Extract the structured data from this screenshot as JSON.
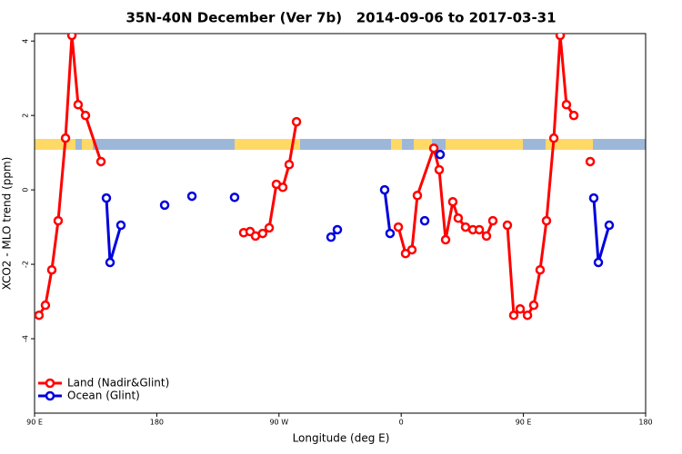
{
  "chart_data": {
    "type": "line",
    "title": "35N-40N December (Ver 7b)   2014-09-06 to 2017-03-31",
    "x_label": "Longitude (deg E)",
    "y_label": "XCO2 - MLO trend (ppm)",
    "xlim": [
      90,
      540
    ],
    "ylim": [
      -6,
      4.2
    ],
    "xticks": [
      {
        "value": 90,
        "label": "90 E"
      },
      {
        "value": 180,
        "label": "180"
      },
      {
        "value": 270,
        "label": "90 W"
      },
      {
        "value": 360,
        "label": "0"
      },
      {
        "value": 450,
        "label": "90 E"
      },
      {
        "value": 540,
        "label": "180"
      }
    ],
    "yticks": [
      4,
      2,
      0,
      -2,
      -4
    ],
    "legend": "bottom-left",
    "series": [
      {
        "name": "Land (Nadir&Glint)",
        "color": "#ff0000",
        "x": [
          93.3,
          98,
          102.7,
          107.4,
          112.8,
          117.5,
          122.1,
          127.5,
          138.9,
          null,
          244,
          248.7,
          252.7,
          258,
          262.8,
          268.1,
          272.8,
          277.5,
          282.9,
          null,
          357.9,
          363.2,
          367.9,
          371.9,
          384,
          388,
          392.7,
          398,
          402,
          407.4,
          412.8,
          417.5,
          422.8,
          427.5,
          null,
          438.2,
          442.9,
          447.6,
          453,
          457.6,
          462.3,
          467,
          472.4,
          477.1,
          481.7,
          487.1,
          null,
          499.2
        ],
        "values": [
          -3.37,
          -3.1,
          -2.15,
          -0.83,
          1.39,
          4.15,
          2.29,
          2.0,
          0.76,
          null,
          -1.15,
          -1.12,
          -1.24,
          -1.17,
          -1.02,
          0.15,
          0.07,
          0.68,
          1.83,
          null,
          -1.0,
          -1.71,
          -1.61,
          -0.15,
          1.12,
          0.54,
          -1.34,
          -0.32,
          -0.76,
          -1.0,
          -1.07,
          -1.07,
          -1.24,
          -0.83,
          null,
          -0.95,
          -3.37,
          -3.2,
          -3.37,
          -3.1,
          -2.15,
          -0.83,
          1.39,
          4.15,
          2.29,
          2.0,
          null,
          0.76
        ]
      },
      {
        "name": "Ocean (Glint)",
        "color": "#0000dd",
        "x": [
          142.9,
          145.6,
          153.6,
          null,
          185.8,
          null,
          205.9,
          null,
          237.3,
          null,
          308.3,
          313,
          null,
          347.8,
          351.8,
          null,
          377.3,
          null,
          388.7,
          null,
          501.8,
          505.2,
          513.2
        ],
        "values": [
          -0.22,
          -1.95,
          -0.95,
          null,
          -0.41,
          null,
          -0.17,
          null,
          -0.2,
          null,
          -1.27,
          -1.07,
          null,
          0.0,
          -1.17,
          null,
          -0.83,
          null,
          0.95,
          null,
          -0.22,
          -1.95,
          -0.95
        ]
      }
    ]
  }
}
